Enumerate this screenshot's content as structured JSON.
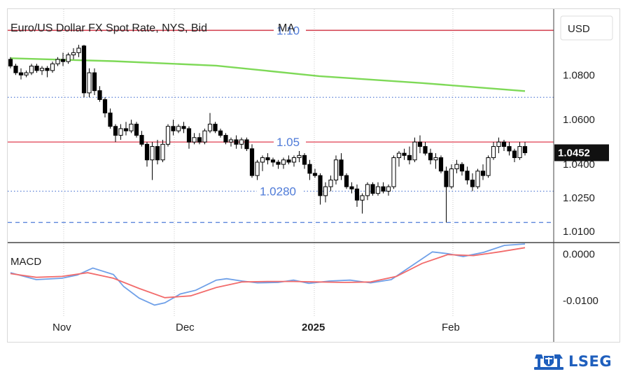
{
  "chart_data": [
    {
      "type": "candlestick",
      "title": "Euro/US Dollar FX Spot Rate, NYS, Bid",
      "legend_extra": "MA",
      "currency_label": "USD",
      "ylim": [
        1.005,
        1.1095
      ],
      "y_ticks": [
        "1.0800",
        "1.0600",
        "1.0400",
        "1.0250",
        "1.0100"
      ],
      "x_labels": [
        "Nov",
        "Dec",
        "2025",
        "Feb"
      ],
      "last_price": "1.0452",
      "last_value": 1.0452,
      "candles": [
        [
          1.087,
          1.088,
          1.083,
          1.084
        ],
        [
          1.084,
          1.085,
          1.08,
          1.081
        ],
        [
          1.081,
          1.083,
          1.078,
          1.08
        ],
        [
          1.08,
          1.082,
          1.079,
          1.081
        ],
        [
          1.081,
          1.085,
          1.08,
          1.084
        ],
        [
          1.084,
          1.085,
          1.081,
          1.082
        ],
        [
          1.082,
          1.084,
          1.08,
          1.083
        ],
        [
          1.083,
          1.084,
          1.079,
          1.082
        ],
        [
          1.082,
          1.086,
          1.081,
          1.085
        ],
        [
          1.085,
          1.088,
          1.084,
          1.087
        ],
        [
          1.087,
          1.09,
          1.084,
          1.086
        ],
        [
          1.086,
          1.09,
          1.085,
          1.089
        ],
        [
          1.089,
          1.092,
          1.087,
          1.09
        ],
        [
          1.09,
          1.0935,
          1.088,
          1.092
        ],
        [
          1.093,
          1.0935,
          1.07,
          1.072
        ],
        [
          1.072,
          1.083,
          1.07,
          1.081
        ],
        [
          1.081,
          1.083,
          1.071,
          1.073
        ],
        [
          1.073,
          1.075,
          1.068,
          1.069
        ],
        [
          1.069,
          1.07,
          1.061,
          1.063
        ],
        [
          1.063,
          1.065,
          1.056,
          1.057
        ],
        [
          1.057,
          1.058,
          1.05,
          1.053
        ],
        [
          1.053,
          1.058,
          1.051,
          1.056
        ],
        [
          1.056,
          1.059,
          1.053,
          1.055
        ],
        [
          1.055,
          1.06,
          1.054,
          1.058
        ],
        [
          1.058,
          1.059,
          1.052,
          1.053
        ],
        [
          1.053,
          1.055,
          1.048,
          1.049
        ],
        [
          1.049,
          1.05,
          1.039,
          1.042
        ],
        [
          1.042,
          1.05,
          1.033,
          1.048
        ],
        [
          1.048,
          1.051,
          1.04,
          1.042
        ],
        [
          1.042,
          1.051,
          1.041,
          1.049
        ],
        [
          1.049,
          1.058,
          1.048,
          1.057
        ],
        [
          1.057,
          1.06,
          1.053,
          1.055
        ],
        [
          1.055,
          1.058,
          1.054,
          1.057
        ],
        [
          1.057,
          1.059,
          1.054,
          1.056
        ],
        [
          1.056,
          1.057,
          1.047,
          1.05
        ],
        [
          1.05,
          1.054,
          1.049,
          1.052
        ],
        [
          1.052,
          1.054,
          1.049,
          1.05
        ],
        [
          1.05,
          1.056,
          1.049,
          1.055
        ],
        [
          1.055,
          1.063,
          1.054,
          1.058
        ],
        [
          1.058,
          1.059,
          1.054,
          1.055
        ],
        [
          1.055,
          1.056,
          1.052,
          1.053
        ],
        [
          1.053,
          1.054,
          1.049,
          1.05
        ],
        [
          1.05,
          1.052,
          1.048,
          1.051
        ],
        [
          1.051,
          1.053,
          1.047,
          1.049
        ],
        [
          1.049,
          1.052,
          1.047,
          1.051
        ],
        [
          1.051,
          1.052,
          1.046,
          1.047
        ],
        [
          1.047,
          1.049,
          1.034,
          1.035
        ],
        [
          1.035,
          1.042,
          1.033,
          1.041
        ],
        [
          1.041,
          1.044,
          1.037,
          1.043
        ],
        [
          1.043,
          1.045,
          1.04,
          1.042
        ],
        [
          1.042,
          1.043,
          1.039,
          1.041
        ],
        [
          1.041,
          1.042,
          1.038,
          1.04
        ],
        [
          1.04,
          1.043,
          1.038,
          1.042
        ],
        [
          1.042,
          1.044,
          1.04,
          1.041
        ],
        [
          1.041,
          1.044,
          1.039,
          1.043
        ],
        [
          1.043,
          1.046,
          1.041,
          1.044
        ],
        [
          1.044,
          1.045,
          1.038,
          1.04
        ],
        [
          1.04,
          1.042,
          1.033,
          1.036
        ],
        [
          1.036,
          1.038,
          1.034,
          1.035
        ],
        [
          1.035,
          1.036,
          1.022,
          1.026
        ],
        [
          1.026,
          1.032,
          1.023,
          1.03
        ],
        [
          1.03,
          1.035,
          1.028,
          1.033
        ],
        [
          1.033,
          1.044,
          1.031,
          1.042
        ],
        [
          1.042,
          1.045,
          1.033,
          1.035
        ],
        [
          1.035,
          1.036,
          1.029,
          1.03
        ],
        [
          1.03,
          1.032,
          1.027,
          1.029
        ],
        [
          1.029,
          1.031,
          1.021,
          1.024
        ],
        [
          1.024,
          1.027,
          1.018,
          1.026
        ],
        [
          1.026,
          1.032,
          1.024,
          1.031
        ],
        [
          1.031,
          1.032,
          1.026,
          1.027
        ],
        [
          1.027,
          1.032,
          1.026,
          1.03
        ],
        [
          1.03,
          1.032,
          1.027,
          1.028
        ],
        [
          1.028,
          1.031,
          1.026,
          1.03
        ],
        [
          1.03,
          1.044,
          1.029,
          1.043
        ],
        [
          1.043,
          1.046,
          1.039,
          1.045
        ],
        [
          1.045,
          1.047,
          1.042,
          1.044
        ],
        [
          1.044,
          1.048,
          1.04,
          1.042
        ],
        [
          1.042,
          1.052,
          1.041,
          1.05
        ],
        [
          1.05,
          1.053,
          1.045,
          1.048
        ],
        [
          1.048,
          1.05,
          1.044,
          1.045
        ],
        [
          1.045,
          1.047,
          1.04,
          1.042
        ],
        [
          1.042,
          1.045,
          1.038,
          1.043
        ],
        [
          1.043,
          1.044,
          1.036,
          1.037
        ],
        [
          1.037,
          1.039,
          1.014,
          1.03
        ],
        [
          1.03,
          1.04,
          1.029,
          1.038
        ],
        [
          1.038,
          1.042,
          1.036,
          1.04
        ],
        [
          1.04,
          1.041,
          1.035,
          1.037
        ],
        [
          1.037,
          1.039,
          1.031,
          1.033
        ],
        [
          1.033,
          1.036,
          1.028,
          1.03
        ],
        [
          1.03,
          1.038,
          1.029,
          1.037
        ],
        [
          1.037,
          1.04,
          1.033,
          1.035
        ],
        [
          1.035,
          1.044,
          1.034,
          1.043
        ],
        [
          1.043,
          1.05,
          1.042,
          1.048
        ],
        [
          1.048,
          1.052,
          1.045,
          1.05
        ],
        [
          1.05,
          1.051,
          1.046,
          1.048
        ],
        [
          1.048,
          1.05,
          1.044,
          1.046
        ],
        [
          1.046,
          1.047,
          1.041,
          1.043
        ],
        [
          1.043,
          1.05,
          1.042,
          1.048
        ],
        [
          1.048,
          1.05,
          1.044,
          1.0452
        ]
      ],
      "ma": {
        "name": "MA",
        "color": "#7ed957",
        "x": [
          0,
          20,
          40,
          60,
          80,
          100
        ],
        "y": [
          1.0875,
          1.0862,
          1.0842,
          1.0795,
          1.0764,
          1.0728
        ]
      },
      "horizontal_lines": [
        {
          "value": 1.1,
          "label": "1.10",
          "style": "solid",
          "color": "#d13a4a"
        },
        {
          "value": 1.05,
          "label": "1.05",
          "style": "solid",
          "color": "#e86a78"
        },
        {
          "value": 1.028,
          "label": "1.0280",
          "style": "dotted",
          "color": "#5a7fd6"
        },
        {
          "value": 1.07,
          "label": "",
          "style": "dotted",
          "color": "#5a7fd6"
        },
        {
          "value": 1.014,
          "label": "",
          "style": "dashed",
          "color": "#4f7bd8"
        }
      ],
      "colors": {
        "candle": "#000000",
        "grid": "#c8c8c8"
      }
    },
    {
      "type": "line",
      "title": "MACD",
      "ylim": [
        -0.0135,
        0.0025
      ],
      "y_ticks": [
        "0.0000",
        "-0.0100"
      ],
      "series": [
        {
          "color": "#6fa0e8",
          "x": [
            0,
            5,
            10,
            13,
            16,
            20,
            22,
            25,
            28,
            30,
            33,
            36,
            40,
            42,
            45,
            48,
            52,
            55,
            58,
            62,
            66,
            70,
            74,
            78,
            82,
            85,
            88,
            92,
            96,
            100
          ],
          "y": [
            -0.004,
            -0.0055,
            -0.0052,
            -0.0045,
            -0.003,
            -0.0044,
            -0.007,
            -0.0095,
            -0.011,
            -0.0105,
            -0.0086,
            -0.0078,
            -0.0056,
            -0.0053,
            -0.0058,
            -0.0062,
            -0.0061,
            -0.0056,
            -0.0063,
            -0.0058,
            -0.0056,
            -0.0062,
            -0.0055,
            -0.0025,
            0.0005,
            0.0001,
            -0.0005,
            0.0004,
            0.0019,
            0.0022
          ]
        },
        {
          "color": "#f26b6b",
          "x": [
            0,
            5,
            10,
            15,
            20,
            25,
            30,
            35,
            40,
            45,
            50,
            55,
            60,
            65,
            70,
            75,
            80,
            85,
            90,
            95,
            100
          ],
          "y": [
            -0.0042,
            -0.005,
            -0.0048,
            -0.004,
            -0.0052,
            -0.0074,
            -0.0094,
            -0.009,
            -0.0072,
            -0.006,
            -0.0059,
            -0.0059,
            -0.006,
            -0.0061,
            -0.006,
            -0.0048,
            -0.002,
            -0.0001,
            -0.0003,
            0.0005,
            0.0014
          ]
        }
      ]
    }
  ],
  "brand": {
    "name": "LSEG",
    "color": "#1f5fbd"
  }
}
